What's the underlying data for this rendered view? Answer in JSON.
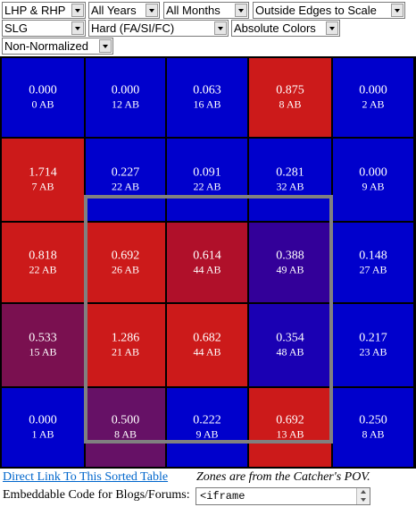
{
  "filters": {
    "row1": [
      {
        "name": "handedness-select",
        "value": "LHP & RHP"
      },
      {
        "name": "years-select",
        "value": "All Years"
      },
      {
        "name": "months-select",
        "value": "All Months"
      },
      {
        "name": "edges-select",
        "value": "Outside Edges to Scale"
      }
    ],
    "row2": [
      {
        "name": "stat-select",
        "value": "SLG"
      },
      {
        "name": "pitch-type-select",
        "value": "Hard (FA/SI/FC)"
      },
      {
        "name": "color-mode-select",
        "value": "Absolute Colors"
      }
    ],
    "row3": [
      {
        "name": "normalization-select",
        "value": "Non-Normalized"
      }
    ]
  },
  "zones": [
    [
      {
        "value": "0.000",
        "ab": "0 AB",
        "color": "#0000cc"
      },
      {
        "value": "0.000",
        "ab": "12 AB",
        "color": "#0000cc"
      },
      {
        "value": "0.063",
        "ab": "16 AB",
        "color": "#0000cc"
      },
      {
        "value": "0.875",
        "ab": "8 AB",
        "color": "#cc1a1a"
      },
      {
        "value": "0.000",
        "ab": "2 AB",
        "color": "#0000cc"
      }
    ],
    [
      {
        "value": "1.714",
        "ab": "7 AB",
        "color": "#cc1a1a"
      },
      {
        "value": "0.227",
        "ab": "22 AB",
        "color": "#0000cc"
      },
      {
        "value": "0.091",
        "ab": "22 AB",
        "color": "#0000cc"
      },
      {
        "value": "0.281",
        "ab": "32 AB",
        "color": "#0000cc"
      },
      {
        "value": "0.000",
        "ab": "9 AB",
        "color": "#0000cc"
      }
    ],
    [
      {
        "value": "0.818",
        "ab": "22 AB",
        "color": "#cc1a1a"
      },
      {
        "value": "0.692",
        "ab": "26 AB",
        "color": "#cc1a1a"
      },
      {
        "value": "0.614",
        "ab": "44 AB",
        "color": "#b0102a"
      },
      {
        "value": "0.388",
        "ab": "49 AB",
        "color": "#330099"
      },
      {
        "value": "0.148",
        "ab": "27 AB",
        "color": "#0000cc"
      }
    ],
    [
      {
        "value": "0.533",
        "ab": "15 AB",
        "color": "#7a1050"
      },
      {
        "value": "1.286",
        "ab": "21 AB",
        "color": "#cc1a1a"
      },
      {
        "value": "0.682",
        "ab": "44 AB",
        "color": "#cc1a1a"
      },
      {
        "value": "0.354",
        "ab": "48 AB",
        "color": "#1a00b3"
      },
      {
        "value": "0.217",
        "ab": "23 AB",
        "color": "#0000cc"
      }
    ],
    [
      {
        "value": "0.000",
        "ab": "1 AB",
        "color": "#0000cc"
      },
      {
        "value": "0.500",
        "ab": "8 AB",
        "color": "#661166"
      },
      {
        "value": "0.222",
        "ab": "9 AB",
        "color": "#0000cc"
      },
      {
        "value": "0.692",
        "ab": "13 AB",
        "color": "#cc1a1a"
      },
      {
        "value": "0.250",
        "ab": "8 AB",
        "color": "#0000cc"
      }
    ]
  ],
  "footer": {
    "link_text": "Direct Link To This Sorted Table",
    "note": "Zones are from the Catcher's POV.",
    "embed_label": "Embeddable Code for Blogs/Forums:",
    "embed_value": "<iframe"
  }
}
